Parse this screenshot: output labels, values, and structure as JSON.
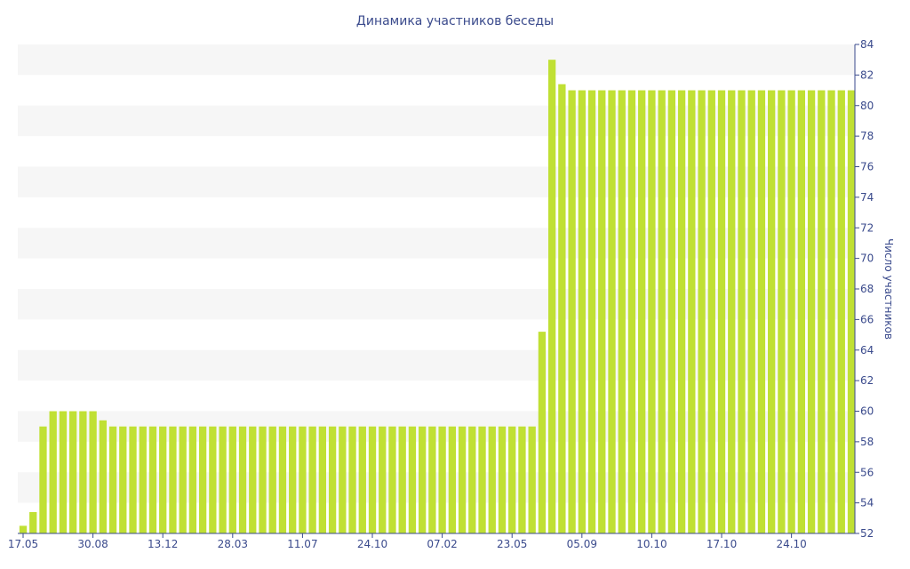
{
  "chart_data": {
    "type": "bar",
    "title": "Динамика участников беседы",
    "ylabel": "Число участников",
    "xlabel": "",
    "ylim": [
      52,
      84
    ],
    "y_ticks": [
      52,
      54,
      56,
      58,
      60,
      62,
      64,
      66,
      68,
      70,
      72,
      74,
      76,
      78,
      80,
      82,
      84
    ],
    "y_axis_position": "right",
    "grid": "alternating horizontal bands",
    "x_tick_labels": [
      "17.05",
      "30.08",
      "13.12",
      "28.03",
      "11.07",
      "24.10",
      "07.02",
      "23.05",
      "05.09",
      "10.10",
      "17.10",
      "24.10"
    ],
    "x_tick_bar_index": [
      0,
      7,
      14,
      21,
      28,
      35,
      42,
      49,
      56,
      63,
      70,
      77
    ],
    "bar_color": "#c0e034",
    "values": [
      52.5,
      53.4,
      59,
      60,
      60,
      60,
      60,
      60,
      59.4,
      59,
      59,
      59,
      59,
      59,
      59,
      59,
      59,
      59,
      59,
      59,
      59,
      59,
      59,
      59,
      59,
      59,
      59,
      59,
      59,
      59,
      59,
      59,
      59,
      59,
      59,
      59,
      59,
      59,
      59,
      59,
      59,
      59,
      59,
      59,
      59,
      59,
      59,
      59,
      59,
      59,
      59,
      59,
      65.2,
      83,
      81.4,
      81,
      81,
      81,
      81,
      81,
      81,
      81,
      81,
      81,
      81,
      81,
      81,
      81,
      81,
      81,
      81,
      81,
      81,
      81,
      81,
      81,
      81,
      81,
      81,
      81,
      81,
      81,
      81,
      81
    ]
  }
}
